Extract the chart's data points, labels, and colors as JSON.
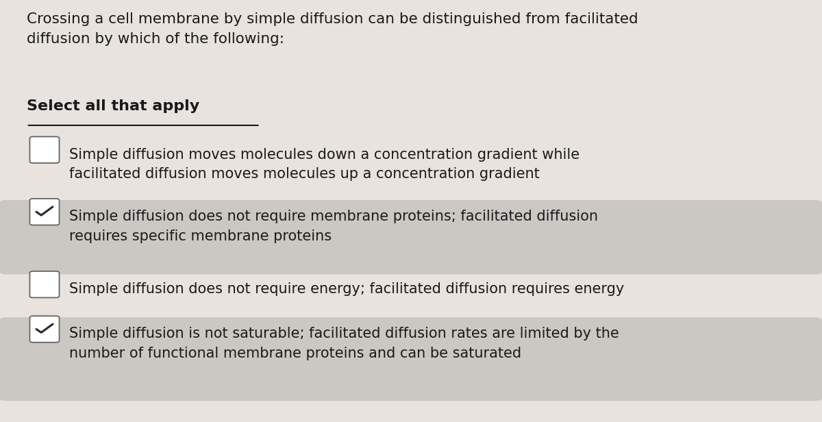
{
  "background_color": "#e8e3df",
  "title_text": "Crossing a cell membrane by simple diffusion can be distinguished from facilitated\ndiffusion by which of the following:",
  "select_text": "Select all that apply",
  "options": [
    {
      "text": "Simple diffusion moves molecules down a concentration gradient while\nfacilitated diffusion moves molecules up a concentration gradient",
      "checked": false,
      "highlighted": false
    },
    {
      "text": "Simple diffusion does not require membrane proteins; facilitated diffusion\nrequires specific membrane proteins",
      "checked": true,
      "highlighted": true
    },
    {
      "text": "Simple diffusion does not require energy; facilitated diffusion requires energy",
      "checked": false,
      "highlighted": false
    },
    {
      "text": "Simple diffusion is not saturable; facilitated diffusion rates are limited by the\nnumber of functional membrane proteins and can be saturated",
      "checked": true,
      "highlighted": true
    }
  ],
  "highlight_color": "#cbc7c3",
  "text_color": "#1a1a1a",
  "title_fontsize": 15.5,
  "select_fontsize": 16,
  "option_fontsize": 15.0,
  "check_color": "#2a2a2a",
  "underline_color": "#1a1a1a"
}
